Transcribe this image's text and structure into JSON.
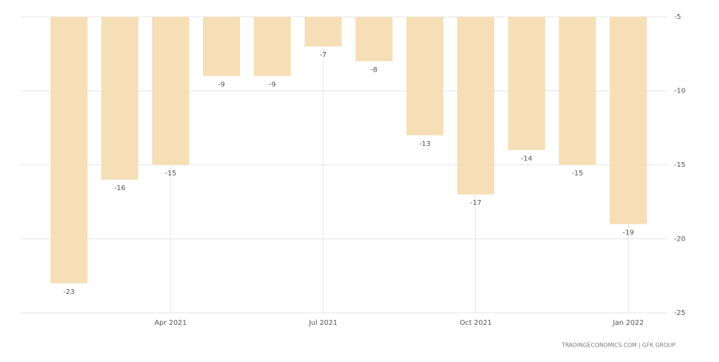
{
  "chart_data": {
    "type": "bar",
    "categories": [
      null,
      null,
      "Apr 2021",
      null,
      null,
      "Jul 2021",
      null,
      null,
      "Oct 2021",
      null,
      null,
      "Jan 2022"
    ],
    "values": [
      -23,
      -16,
      -15,
      -9,
      -9,
      -7,
      -8,
      -13,
      -17,
      -14,
      -15,
      -19
    ],
    "color": "#f6dfb6",
    "ylim": [
      -25,
      -5
    ],
    "yticks": [
      -25,
      -20,
      -15,
      -10,
      -5
    ],
    "grid": true,
    "source": "TRADINGECONOMICS.COM | GFK GROUP"
  }
}
